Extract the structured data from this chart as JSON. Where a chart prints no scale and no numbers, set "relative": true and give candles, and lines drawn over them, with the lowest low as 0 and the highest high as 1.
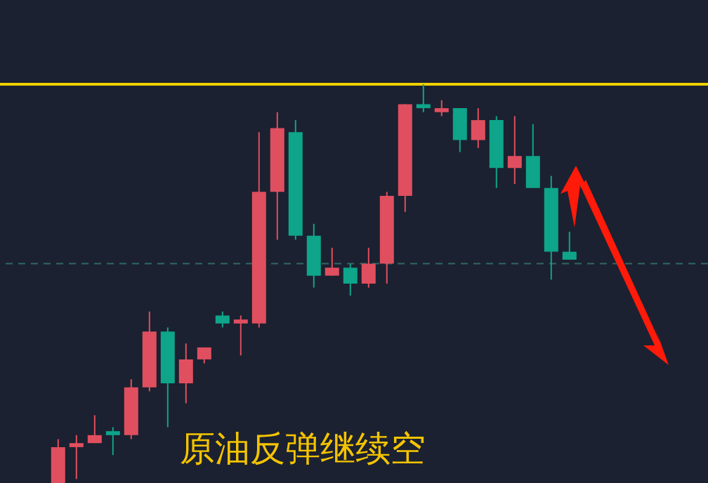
{
  "chart_data": {
    "type": "candlestick",
    "title": "原油反弹继续空",
    "relative": true,
    "categories": [
      null,
      null,
      null,
      null,
      null,
      null,
      null,
      null,
      null,
      null,
      null,
      null,
      null,
      null,
      null,
      null,
      null,
      null,
      null,
      null,
      null,
      null,
      null,
      null,
      null,
      null,
      null,
      null,
      null
    ],
    "ohlc": [
      [
        0,
        0.11,
        0,
        0.09
      ],
      [
        0.09,
        0.12,
        0.01,
        0.1
      ],
      [
        0.1,
        0.17,
        0.1,
        0.12
      ],
      [
        0.13,
        0.14,
        0.07,
        0.12
      ],
      [
        0.12,
        0.26,
        0.11,
        0.24
      ],
      [
        0.24,
        0.43,
        0.23,
        0.38
      ],
      [
        0.38,
        0.39,
        0.14,
        0.25
      ],
      [
        0.25,
        0.35,
        0.2,
        0.31
      ],
      [
        0.31,
        0.34,
        0.3,
        0.34
      ],
      [
        0.42,
        0.43,
        0.39,
        0.4
      ],
      [
        0.4,
        0.42,
        0.32,
        0.41
      ],
      [
        0.4,
        0.88,
        0.39,
        0.73
      ],
      [
        0.73,
        0.93,
        0.61,
        0.89
      ],
      [
        0.88,
        0.91,
        0.61,
        0.62
      ],
      [
        0.62,
        0.65,
        0.49,
        0.52
      ],
      [
        0.52,
        0.59,
        0.52,
        0.54
      ],
      [
        0.54,
        0.55,
        0.47,
        0.5
      ],
      [
        0.5,
        0.59,
        0.49,
        0.55
      ],
      [
        0.55,
        0.73,
        0.5,
        0.72
      ],
      [
        0.72,
        0.95,
        0.68,
        0.95
      ],
      [
        0.95,
        1,
        0.93,
        0.94
      ],
      [
        0.93,
        0.96,
        0.92,
        0.94
      ],
      [
        0.94,
        0.94,
        0.83,
        0.86
      ],
      [
        0.86,
        0.94,
        0.84,
        0.91
      ],
      [
        0.91,
        0.92,
        0.74,
        0.79
      ],
      [
        0.79,
        0.92,
        0.75,
        0.82
      ],
      [
        0.82,
        0.9,
        0.74,
        0.74
      ],
      [
        0.74,
        0.77,
        0.51,
        0.58
      ],
      [
        0.58,
        0.63,
        0.56,
        0.56
      ]
    ],
    "colors": [
      "#e04f5f",
      "#e04f5f",
      "#e04f5f",
      "#0ea58a",
      "#e04f5f",
      "#e04f5f",
      "#0ea58a",
      "#e04f5f",
      "#e04f5f",
      "#0ea58a",
      "#e04f5f",
      "#e04f5f",
      "#e04f5f",
      "#0ea58a",
      "#0ea58a",
      "#e04f5f",
      "#0ea58a",
      "#e04f5f",
      "#e04f5f",
      "#e04f5f",
      "#0ea58a",
      "#e04f5f",
      "#0ea58a",
      "#e04f5f",
      "#0ea58a",
      "#e04f5f",
      "#0ea58a",
      "#0ea58a",
      "#0ea58a"
    ],
    "ref_lines": [
      {
        "axis": "y",
        "value": 1,
        "color": "#f0d000",
        "line_style": "solid"
      },
      {
        "axis": "y",
        "value": 0.55,
        "color": "#2e6a62",
        "line_style": "dashed"
      }
    ]
  }
}
